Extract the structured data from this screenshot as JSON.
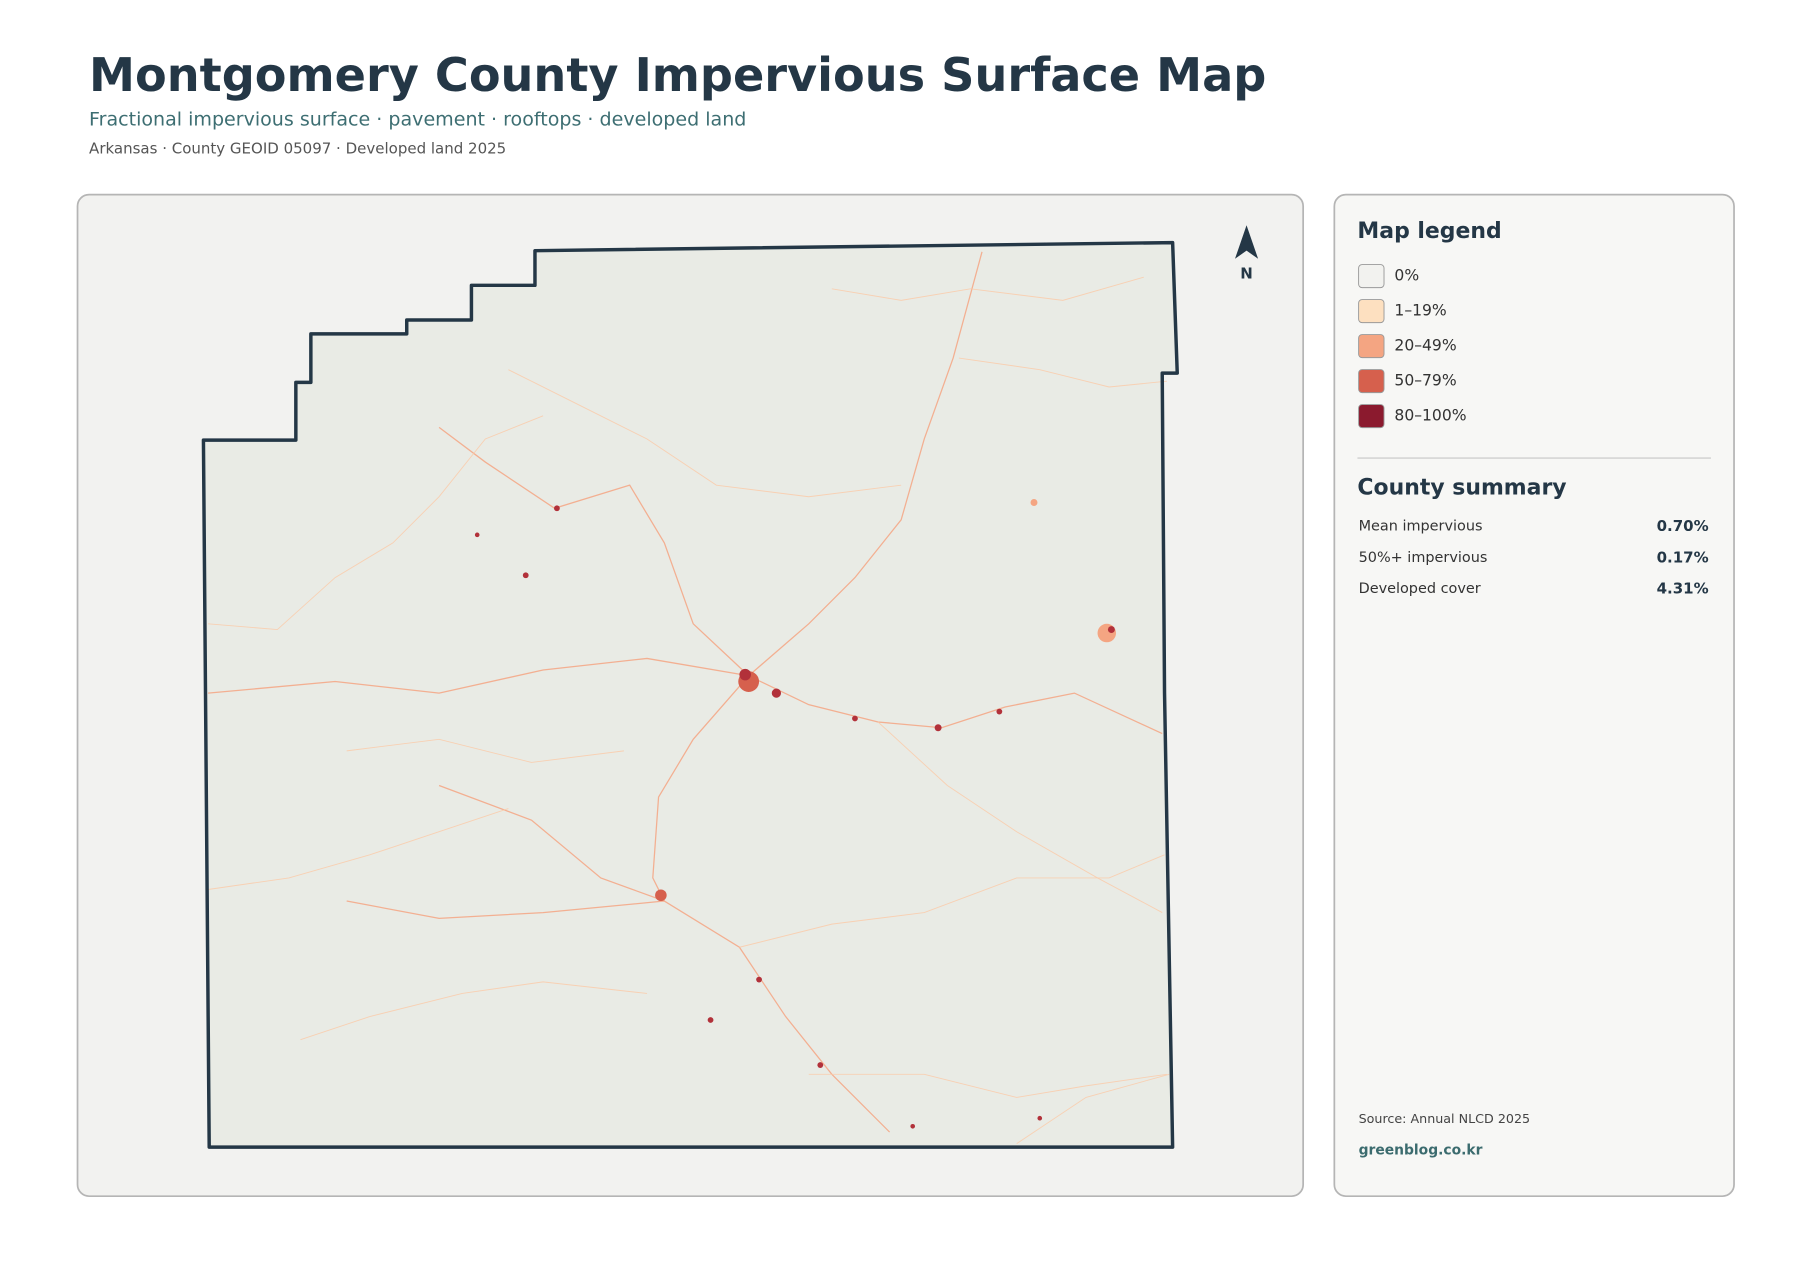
{
  "header": {
    "title": "Montgomery County Impervious Surface Map",
    "subtitle": "Fractional impervious surface · pavement · rooftops · developed land",
    "meta": "Arkansas · County GEOID 05097 · Developed land 2025"
  },
  "map": {
    "north_label": "N"
  },
  "legend": {
    "title": "Map legend",
    "items": [
      {
        "label": "0%",
        "color": "#f2f2ef"
      },
      {
        "label": "1–19%",
        "color": "#fde0c0"
      },
      {
        "label": "20–49%",
        "color": "#f4a582"
      },
      {
        "label": "50–79%",
        "color": "#d6604d"
      },
      {
        "label": "80–100%",
        "color": "#8b1a2e"
      }
    ]
  },
  "summary": {
    "title": "County summary",
    "rows": [
      {
        "label": "Mean impervious",
        "value": "0.70%"
      },
      {
        "label": "50%+ impervious",
        "value": "0.17%"
      },
      {
        "label": "Developed cover",
        "value": "4.31%"
      }
    ]
  },
  "footer": {
    "source": "Source: Annual NLCD 2025",
    "site": "greenblog.co.kr"
  }
}
